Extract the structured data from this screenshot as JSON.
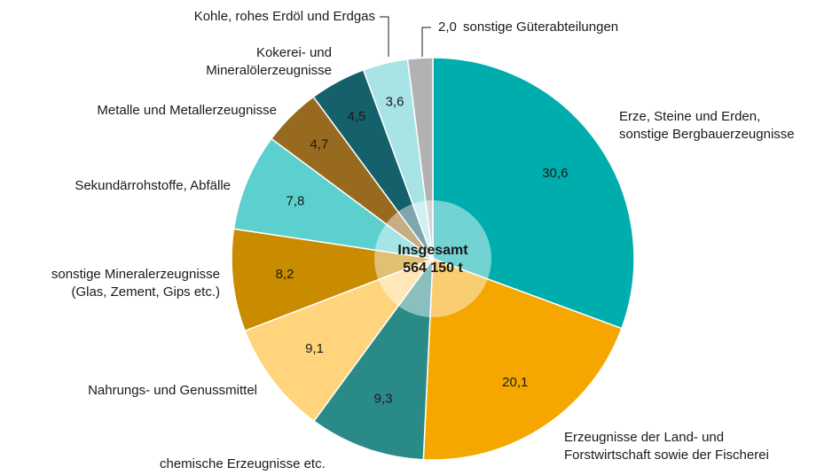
{
  "chart_data": {
    "type": "pie",
    "center_label": [
      "Insgesamt",
      "564 150 t"
    ],
    "categories": [
      [
        "Erze, Steine und Erden,",
        "sonstige Bergbauerzeugnisse"
      ],
      [
        "Erzeugnisse der Land- und",
        "Forstwirtschaft sowie der Fischerei"
      ],
      [
        "chemische Erzeugnisse etc."
      ],
      [
        "Nahrungs- und Genussmittel"
      ],
      [
        "sonstige Mineralerzeugnisse",
        "(Glas, Zement, Gips etc.)"
      ],
      [
        "Sekundärrohstoffe, Abfälle"
      ],
      [
        "Metalle und Metallerzeugnisse"
      ],
      [
        "Kokerei- und",
        "Mineralölerzeugnisse"
      ],
      [
        "Kohle, rohes Erdöl und Erdgas"
      ],
      [
        "sonstige Güterabteilungen"
      ]
    ],
    "values": [
      30.6,
      20.1,
      9.3,
      9.1,
      8.2,
      7.8,
      4.7,
      4.5,
      3.6,
      2.0
    ],
    "value_labels": [
      "30,6",
      "20,1",
      "9,3",
      "9,1",
      "8,2",
      "7,8",
      "4,7",
      "4,5",
      "3,6",
      "2,0"
    ],
    "colors": [
      "#00adad",
      "#f5a700",
      "#2a8a88",
      "#ffd47c",
      "#c98b00",
      "#5ccfcf",
      "#986a20",
      "#14606b",
      "#a8e3e6",
      "#b2b2b2"
    ]
  }
}
